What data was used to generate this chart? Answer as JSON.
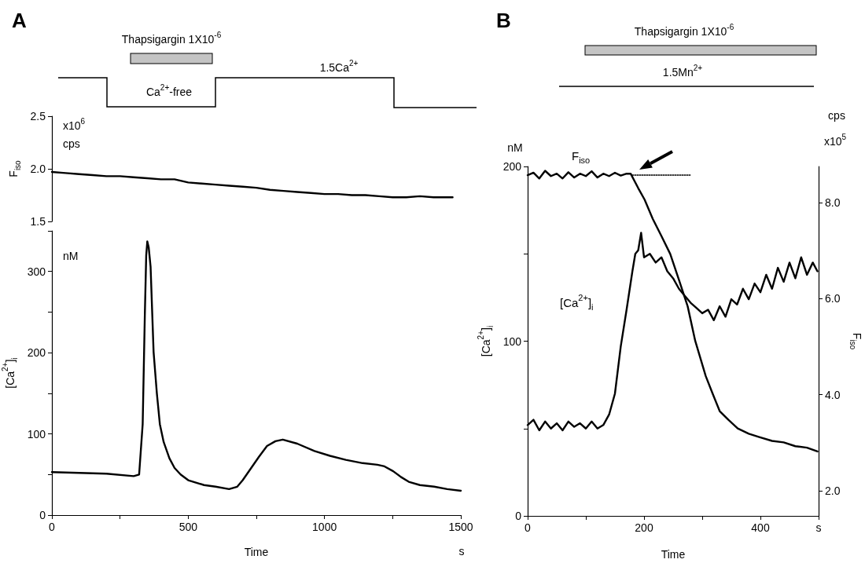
{
  "chart_data": [
    {
      "type": "line",
      "title": "A",
      "marker": "none",
      "tick_labels": "y",
      "ylabel": "F$_{iso}$",
      "xlim": [
        0,
        1500
      ],
      "ylim": [
        1.5,
        2.5
      ],
      "yticks": [
        1.5,
        {
          "value": 2,
          "label": "2.0"
        },
        2.5
      ],
      "color": "#000000",
      "x": [
        0,
        50,
        100,
        150,
        200,
        250,
        300,
        350,
        400,
        450,
        500,
        550,
        600,
        650,
        700,
        750,
        800,
        850,
        900,
        950,
        1000,
        1050,
        1100,
        1150,
        1200,
        1250,
        1300,
        1350,
        1400,
        1470
      ],
      "values": [
        1.97,
        1.96,
        1.95,
        1.94,
        1.93,
        1.93,
        1.92,
        1.91,
        1.9,
        1.9,
        1.87,
        1.86,
        1.85,
        1.84,
        1.83,
        1.82,
        1.8,
        1.79,
        1.78,
        1.77,
        1.76,
        1.76,
        1.75,
        1.75,
        1.74,
        1.73,
        1.73,
        1.74,
        1.73,
        1.73
      ],
      "annotations": [
        "Thapsigargin 1X10$^{-6}$",
        "Ca$^{2+}$-free",
        "1.5Ca$^{2+}$",
        "x10$^{6}$",
        "cps"
      ]
    },
    {
      "type": "line",
      "marker": "none",
      "xlabel": "Time",
      "ylabel": "[Ca$^{2+}$]$_{i}$",
      "xlim": [
        0,
        1500
      ],
      "xticks": [
        0,
        {
          "value": 250,
          "label": null
        },
        500,
        {
          "value": 750,
          "label": null
        },
        1000,
        {
          "value": 1250,
          "label": null
        },
        1500
      ],
      "ylim": [
        0,
        350
      ],
      "yticks": [
        0,
        {
          "value": 50,
          "label": null
        },
        100,
        {
          "value": 150,
          "label": null
        },
        200,
        {
          "value": 250,
          "label": null
        },
        300,
        {
          "value": 350,
          "label": null
        }
      ],
      "color": "#000000",
      "x": [
        0,
        100,
        200,
        300,
        320,
        333,
        341,
        346,
        350,
        355,
        362,
        373,
        385,
        396,
        410,
        431,
        450,
        472,
        500,
        558,
        600,
        650,
        680,
        700,
        731,
        760,
        789,
        820,
        847,
        900,
        963,
        1020,
        1078,
        1140,
        1194,
        1220,
        1252,
        1280,
        1309,
        1350,
        1402,
        1450,
        1500
      ],
      "values": [
        53,
        52,
        51,
        48,
        50,
        112,
        248,
        320,
        337,
        330,
        306,
        201,
        150,
        112,
        90,
        70,
        58,
        50,
        43,
        37,
        35,
        32,
        35,
        43,
        58,
        72,
        85,
        91,
        93,
        88,
        79,
        73,
        68,
        64,
        62,
        60,
        54,
        47,
        41,
        37,
        35,
        32,
        30
      ],
      "annotations": [
        "nM",
        "s"
      ]
    },
    {
      "type": "line",
      "title": "B",
      "marker": "none",
      "xlabel": "Time",
      "ylabel": "[Ca$^{2+}$]$_{i}$",
      "y2label": "F$_{iso}$",
      "xlim": [
        0,
        500
      ],
      "xticks": [
        0,
        {
          "value": 100,
          "label": null
        },
        200,
        {
          "value": 300,
          "label": null
        },
        400,
        {
          "value": 500,
          "label": "s"
        }
      ],
      "ylim": [
        0,
        200
      ],
      "yticks": [
        0,
        {
          "value": 50,
          "label": null
        },
        100,
        {
          "value": 150,
          "label": null
        },
        200
      ],
      "y2lim": [
        1.48,
        8.75
      ],
      "y2ticks": [
        {
          "value": 2,
          "label": "2.0"
        },
        {
          "value": 4,
          "label": "4.0"
        },
        {
          "value": 6,
          "label": "6.0"
        },
        {
          "value": 8,
          "label": "8.0"
        }
      ],
      "series": [
        {
          "name": "F$_{iso}$",
          "axis": "y2",
          "color": "#000000",
          "x": [
            0,
            10,
            20,
            30,
            40,
            50,
            60,
            70,
            80,
            90,
            100,
            110,
            120,
            130,
            140,
            150,
            160,
            170,
            177,
            190,
            201,
            215,
            230,
            245,
            260,
            275,
            288,
            306,
            318,
            330,
            345,
            361,
            380,
            398,
            420,
            440,
            460,
            480,
            498
          ],
          "values": [
            8.57,
            8.62,
            8.5,
            8.66,
            8.55,
            8.6,
            8.5,
            8.63,
            8.52,
            8.6,
            8.55,
            8.65,
            8.52,
            8.6,
            8.55,
            8.62,
            8.56,
            8.6,
            8.6,
            8.3,
            8.06,
            7.66,
            7.3,
            6.93,
            6.39,
            5.84,
            5.12,
            4.39,
            4.02,
            3.66,
            3.48,
            3.3,
            3.19,
            3.12,
            3.04,
            3.01,
            2.93,
            2.9,
            2.82
          ]
        },
        {
          "name": "[Ca$^{2+}$]$_{i}$",
          "color": "#000000",
          "x": [
            0,
            10,
            20,
            30,
            40,
            50,
            60,
            70,
            80,
            90,
            100,
            110,
            120,
            130,
            140,
            150,
            160,
            170,
            180,
            185,
            190,
            195,
            200,
            210,
            220,
            230,
            240,
            250,
            260,
            270,
            280,
            290,
            300,
            310,
            320,
            330,
            340,
            350,
            360,
            370,
            380,
            390,
            400,
            410,
            420,
            430,
            440,
            450,
            460,
            470,
            480,
            490,
            498
          ],
          "values": [
            52,
            55,
            49,
            54,
            50,
            53,
            49,
            54,
            51,
            53,
            50,
            54,
            50,
            52,
            58,
            70,
            97,
            118,
            140,
            150,
            152,
            162,
            148,
            150,
            145,
            148,
            140,
            136,
            130,
            126,
            122,
            119,
            116,
            118,
            112,
            120,
            114,
            124,
            121,
            130,
            124,
            133,
            128,
            138,
            130,
            142,
            134,
            145,
            136,
            148,
            138,
            145,
            140
          ]
        },
        {
          "axis": "y2",
          "color": "#000000",
          "line_style": "dotted",
          "x": [
            180,
            280
          ],
          "values": [
            8.57,
            8.57
          ]
        }
      ],
      "annotations": [
        "Thapsigargin 1X10$^{-6}$",
        "1.5Mn$^{2+}$",
        "nM",
        "cps",
        "x10$^{5}$"
      ]
    }
  ]
}
